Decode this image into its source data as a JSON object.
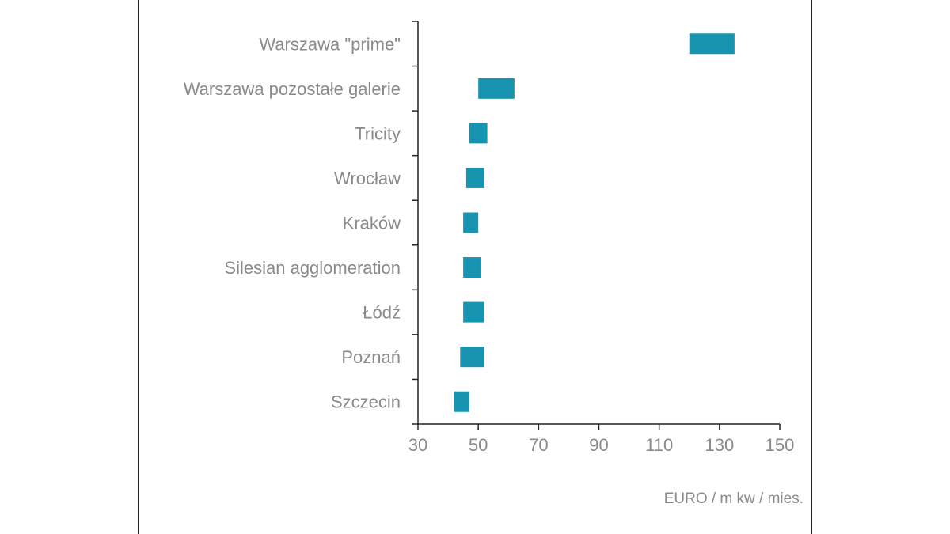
{
  "chart_data": {
    "type": "bar",
    "subtype": "floating-range-horizontal",
    "categories": [
      "Warszawa \"prime\"",
      "Warszawa pozostałe galerie",
      "Tricity",
      "Wrocław",
      "Kraków",
      "Silesian agglomeration",
      "Łódź",
      "Poznań",
      "Szczecin"
    ],
    "ranges": [
      [
        120,
        135
      ],
      [
        50,
        62
      ],
      [
        47,
        53
      ],
      [
        46,
        52
      ],
      [
        45,
        50
      ],
      [
        45,
        51
      ],
      [
        45,
        52
      ],
      [
        44,
        52
      ],
      [
        42,
        47
      ]
    ],
    "xlim": [
      30,
      150
    ],
    "xticks": [
      "30",
      "50",
      "70",
      "90",
      "110",
      "130",
      "150"
    ],
    "unit_label": "EURO / m kw / mies.",
    "bar_color": "#1795b0",
    "grid": false
  }
}
